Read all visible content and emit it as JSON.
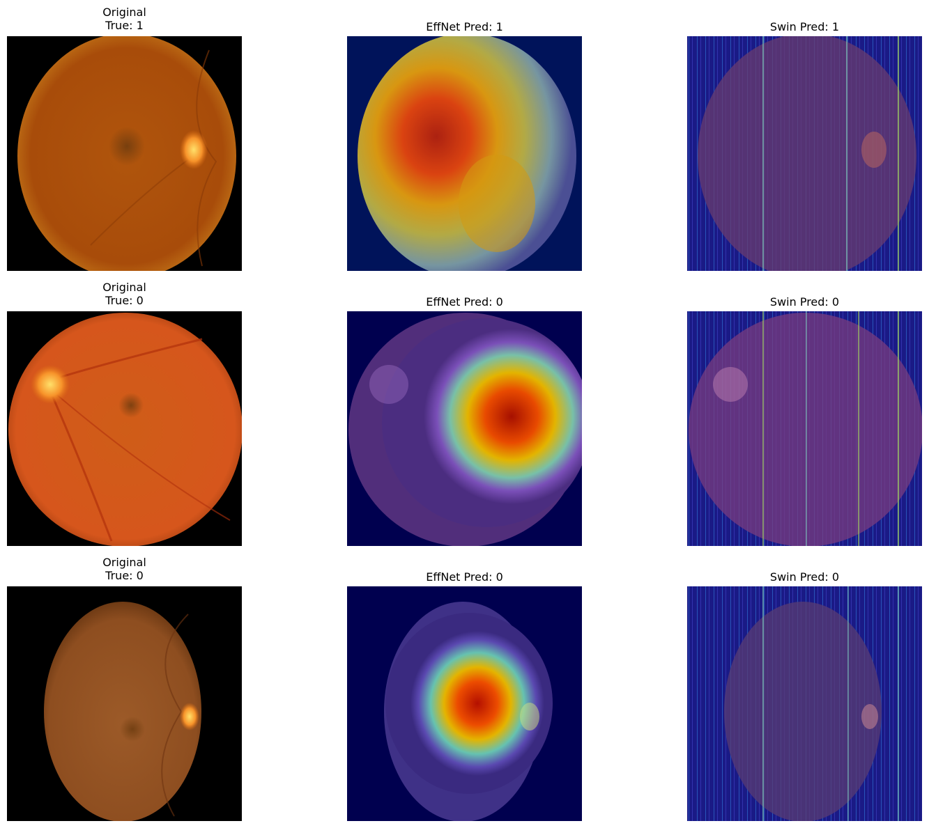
{
  "rows": [
    {
      "original": {
        "title": "Original",
        "true_label": "True: 1"
      },
      "effnet": {
        "title": "EffNet Pred: 1"
      },
      "swin": {
        "title": "Swin Pred: 1"
      }
    },
    {
      "original": {
        "title": "Original",
        "true_label": "True: 0"
      },
      "effnet": {
        "title": "EffNet Pred: 0"
      },
      "swin": {
        "title": "Swin Pred: 0"
      }
    },
    {
      "original": {
        "title": "Original",
        "true_label": "True: 0"
      },
      "effnet": {
        "title": "EffNet Pred: 0"
      },
      "swin": {
        "title": "Swin Pred: 0"
      }
    }
  ],
  "colors": {
    "fundus_orange": "#b4560e",
    "fundus_red": "#d9561f",
    "fundus_brown": "#a2602a",
    "heatmap_background": "#00004f",
    "heat_red": "#c81800",
    "heat_yellow": "#e5b000",
    "heat_green": "#6cc0a0",
    "swin_purple": "#5a3d7a"
  }
}
